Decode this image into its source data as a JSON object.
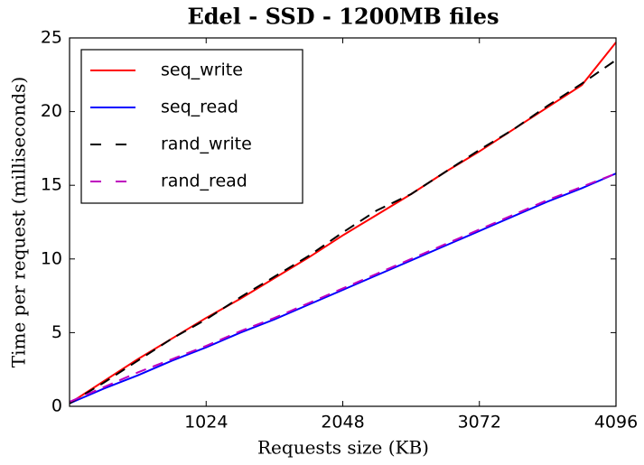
{
  "chart_data": {
    "type": "line",
    "title": "Edel - SSD - 1200MB files",
    "x_label": "Requests size (KB)",
    "y_label": "Time per request (milliseconds)",
    "x": [
      0,
      256,
      512,
      768,
      1024,
      1280,
      1536,
      1792,
      2048,
      2304,
      2560,
      2816,
      3072,
      3328,
      3584,
      3840,
      4096
    ],
    "series": [
      {
        "name": "seq_write",
        "color": "#ff0000",
        "linestyle": "solid",
        "values": [
          0.2,
          1.7,
          3.2,
          4.6,
          6.0,
          7.3,
          8.7,
          10.1,
          11.6,
          13.0,
          14.4,
          15.9,
          17.3,
          18.8,
          20.3,
          21.8,
          24.7
        ]
      },
      {
        "name": "seq_read",
        "color": "#0000ff",
        "linestyle": "solid",
        "values": [
          0.2,
          1.2,
          2.1,
          3.1,
          4.0,
          5.0,
          5.9,
          6.9,
          7.9,
          8.9,
          9.9,
          10.9,
          11.9,
          12.9,
          13.9,
          14.8,
          15.8
        ]
      },
      {
        "name": "rand_write",
        "color": "#000000",
        "linestyle": "dashed",
        "values": [
          0.2,
          1.6,
          3.1,
          4.6,
          5.9,
          7.4,
          8.8,
          10.2,
          11.8,
          13.3,
          14.4,
          15.9,
          17.4,
          18.8,
          20.4,
          21.9,
          23.5
        ]
      },
      {
        "name": "rand_read",
        "color": "#bf00bf",
        "linestyle": "dashed",
        "values": [
          0.3,
          1.3,
          2.3,
          3.2,
          4.1,
          5.1,
          6.0,
          7.0,
          8.0,
          9.0,
          10.0,
          11.0,
          12.0,
          13.0,
          14.0,
          14.9,
          15.8
        ]
      }
    ],
    "xlim": [
      0,
      4096
    ],
    "xticks": [
      1024,
      2048,
      3072,
      4096
    ],
    "ylim": [
      0,
      25
    ],
    "yticks": [
      0,
      5,
      10,
      15,
      20,
      25
    ],
    "legend": "upper left",
    "grid": false
  }
}
